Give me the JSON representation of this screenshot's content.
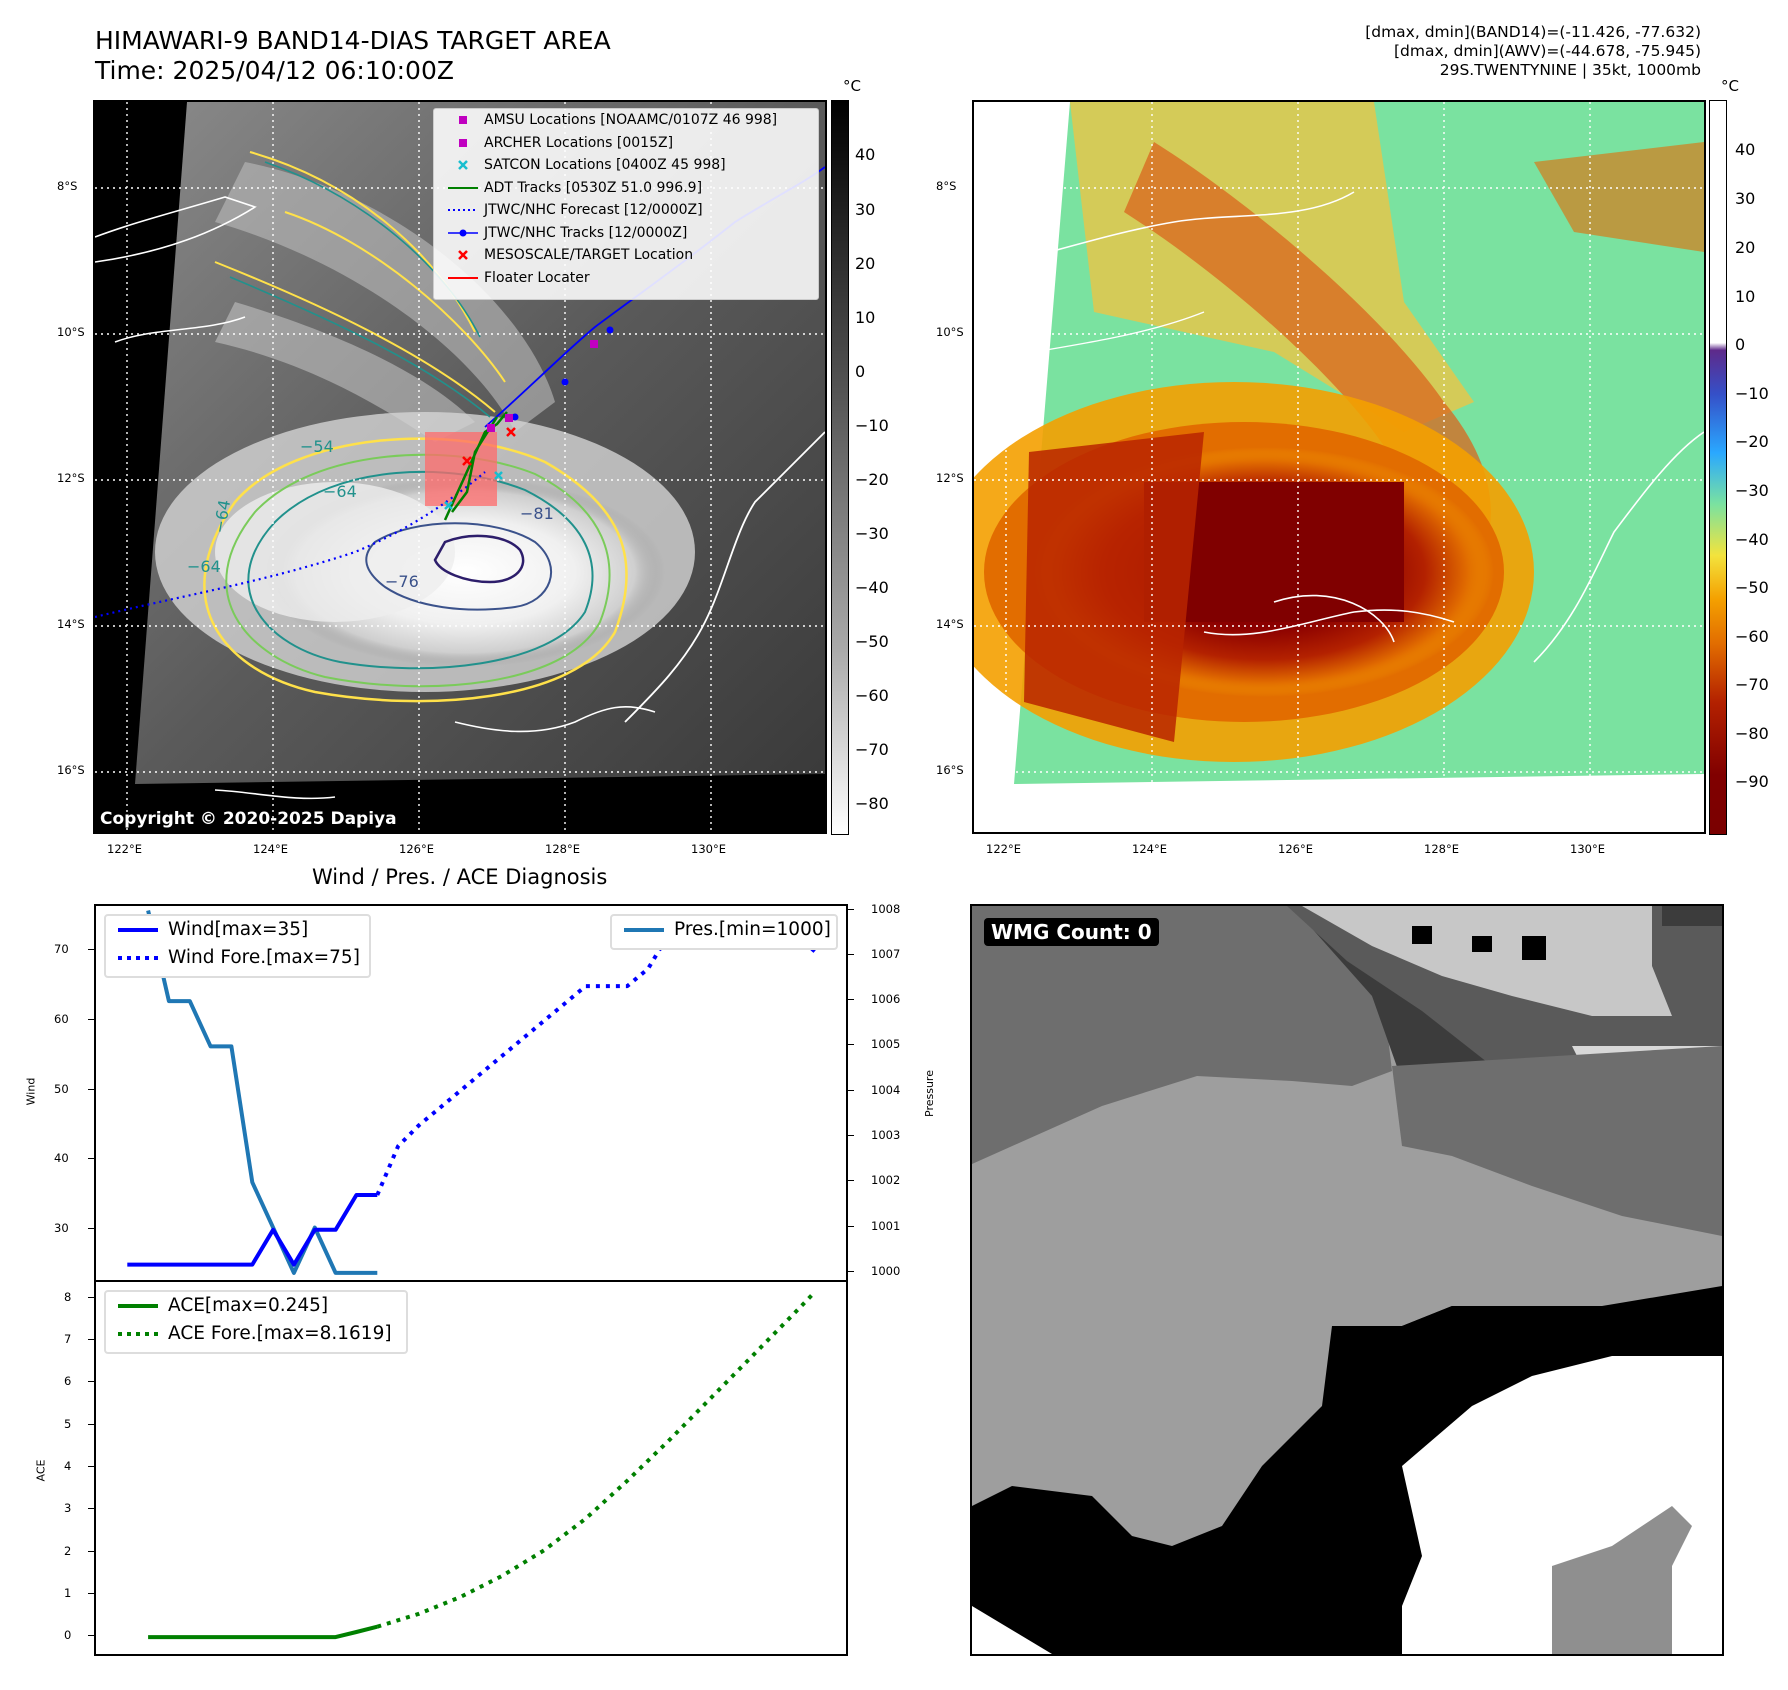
{
  "panel_ir": {
    "title_line1": "HIMAWARI-9 BAND14-DIAS TARGET AREA",
    "title_line2": "Time: 2025/04/12 06:10:00Z",
    "colorbar_unit": "°C",
    "colorbar_ticks": [
      "40",
      "30",
      "20",
      "10",
      "0",
      "−10",
      "−20",
      "−30",
      "−40",
      "−50",
      "−60",
      "−70",
      "−80"
    ],
    "lat_ticks": [
      "8°S",
      "10°S",
      "12°S",
      "14°S",
      "16°S"
    ],
    "lon_ticks": [
      "122°E",
      "124°E",
      "126°E",
      "128°E",
      "130°E"
    ],
    "contour_labels": [
      "−54",
      "−64",
      "−64",
      "−64",
      "−81",
      "−76"
    ],
    "copyright": "Copyright © 2020-2025 Dapiya",
    "legend": [
      {
        "label": "AMSU Locations [NOAAMC/0107Z 46 998]",
        "symbol": "square",
        "color": "#c000c0"
      },
      {
        "label": "ARCHER Locations [0015Z]",
        "symbol": "square",
        "color": "#c000c0"
      },
      {
        "label": "SATCON Locations [0400Z 45 998]",
        "symbol": "x",
        "color": "#17becf"
      },
      {
        "label": "ADT Tracks [0530Z 51.0 996.9]",
        "symbol": "line",
        "color": "#008000"
      },
      {
        "label": "JTWC/NHC Forecast [12/0000Z]",
        "symbol": "dotted",
        "color": "#0000ff"
      },
      {
        "label": "JTWC/NHC Tracks [12/0000Z]",
        "symbol": "linedot",
        "color": "#0000ff"
      },
      {
        "label": "MESOSCALE/TARGET Location",
        "symbol": "x",
        "color": "#ff0000"
      },
      {
        "label": "Floater Locater",
        "symbol": "line",
        "color": "#ff0000"
      }
    ]
  },
  "panel_awv": {
    "info_line1": "[dmax, dmin](BAND14)=(-11.426, -77.632)",
    "info_line2": "[dmax, dmin](AWV)=(-44.678, -75.945)",
    "info_line3": "29S.TWENTYNINE | 35kt, 1000mb",
    "colorbar_unit": "°C",
    "colorbar_ticks": [
      "40",
      "30",
      "20",
      "10",
      "0",
      "−10",
      "−20",
      "−30",
      "−40",
      "−50",
      "−60",
      "−70",
      "−80",
      "−90"
    ],
    "lat_ticks": [
      "8°S",
      "10°S",
      "12°S",
      "14°S",
      "16°S"
    ],
    "lon_ticks": [
      "122°E",
      "124°E",
      "126°E",
      "128°E",
      "130°E"
    ]
  },
  "panel_wind": {
    "title": "Wind / Pres. / ACE Diagnosis",
    "ylabel_left": "Wind",
    "ylabel_right": "Pressure",
    "left_ticks": [
      "70",
      "60",
      "50",
      "40",
      "30"
    ],
    "right_ticks": [
      "1008",
      "1007",
      "1006",
      "1005",
      "1004",
      "1003",
      "1002",
      "1001",
      "1000"
    ],
    "legend_left": [
      {
        "label": "Wind[max=35]",
        "style": "solid",
        "color": "#0000ff"
      },
      {
        "label": "Wind Fore.[max=75]",
        "style": "dotted",
        "color": "#0000ff"
      }
    ],
    "legend_right": [
      {
        "label": "Pres.[min=1000]",
        "style": "solid",
        "color": "#1f77b4"
      }
    ]
  },
  "panel_ace": {
    "ylabel": "ACE",
    "ticks": [
      "8",
      "7",
      "6",
      "5",
      "4",
      "3",
      "2",
      "1",
      "0"
    ],
    "legend": [
      {
        "label": "ACE[max=0.245]",
        "style": "solid",
        "color": "#008000"
      },
      {
        "label": "ACE Fore.[max=8.1619]",
        "style": "dotted",
        "color": "#008000"
      }
    ]
  },
  "panel_wmg": {
    "badge": "WMG Count: 0"
  },
  "chart_data": [
    {
      "type": "line",
      "title": "Wind / Pres. / ACE Diagnosis",
      "ylabel": "Wind",
      "ylim": [
        22.5,
        76.5
      ],
      "series": [
        {
          "name": "Wind[max=35]",
          "style": "solid",
          "color": "#0000ff",
          "x": [
            0,
            1,
            2,
            3,
            4,
            5,
            6,
            7,
            8,
            9,
            10,
            11,
            12
          ],
          "y": [
            25,
            25,
            25,
            25,
            25,
            25,
            25,
            30,
            25,
            30,
            30,
            35,
            35
          ]
        },
        {
          "name": "Wind Fore.[max=75]",
          "style": "dotted",
          "color": "#0000ff",
          "x": [
            12,
            13,
            14,
            15,
            16,
            17,
            18,
            19,
            20,
            21,
            22,
            23,
            24,
            25,
            26,
            27,
            28,
            29,
            30,
            31,
            32,
            33
          ],
          "y": [
            35,
            42,
            45,
            47.5,
            50,
            52.5,
            55,
            57.5,
            60,
            62.5,
            65,
            65,
            65,
            67.5,
            72.5,
            75,
            75,
            75,
            72.5,
            72.5,
            72.5,
            70
          ]
        }
      ]
    },
    {
      "type": "line",
      "ylabel": "Pressure",
      "ylim": [
        999.8,
        1008.1
      ],
      "series": [
        {
          "name": "Pres.[min=1000]",
          "style": "solid",
          "color": "#1f77b4",
          "x": [
            1,
            2,
            3,
            4,
            5,
            6,
            7,
            8,
            9,
            10,
            11,
            12
          ],
          "y": [
            1008,
            1006,
            1006,
            1005,
            1005,
            1002,
            1001,
            1000,
            1001,
            1000,
            1000,
            1000
          ]
        }
      ]
    },
    {
      "type": "line",
      "ylabel": "ACE",
      "ylim": [
        -0.4,
        8.4
      ],
      "series": [
        {
          "name": "ACE[max=0.245]",
          "style": "solid",
          "color": "#008000",
          "x": [
            1,
            2,
            3,
            4,
            5,
            6,
            7,
            8,
            9,
            10,
            11,
            12
          ],
          "y": [
            0,
            0,
            0,
            0,
            0,
            0,
            0,
            0,
            0,
            0,
            0.12,
            0.245
          ]
        },
        {
          "name": "ACE Fore.[max=8.1619]",
          "style": "dotted",
          "color": "#008000",
          "x": [
            12,
            14,
            16,
            18,
            20,
            22,
            24,
            26,
            28,
            30,
            32,
            33
          ],
          "y": [
            0.245,
            0.55,
            0.95,
            1.45,
            2.05,
            2.8,
            3.7,
            4.65,
            5.65,
            6.65,
            7.65,
            8.1619
          ]
        }
      ]
    }
  ]
}
